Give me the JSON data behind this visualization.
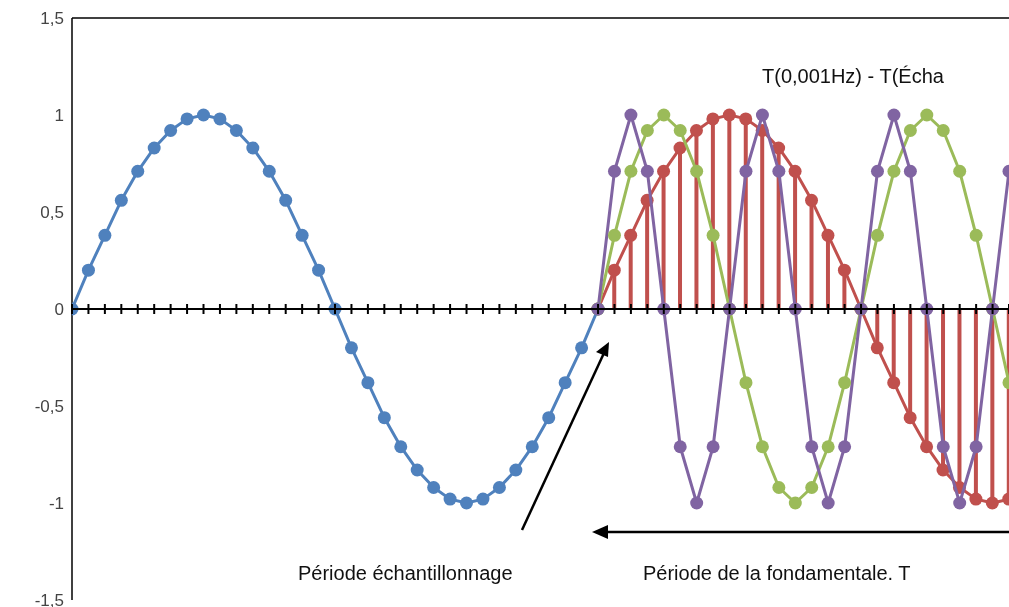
{
  "chart_data": {
    "type": "line",
    "categories": [
      null,
      null,
      null,
      null,
      null,
      null,
      null,
      null,
      null,
      null,
      null,
      null,
      null,
      null,
      null,
      null,
      null,
      null,
      null,
      null,
      null,
      null,
      null,
      null,
      null,
      null,
      null,
      null,
      null,
      null,
      null,
      null,
      null,
      null,
      null,
      null,
      null,
      null,
      null,
      null,
      null,
      null,
      null,
      null,
      null,
      null,
      null,
      null,
      null,
      null,
      null,
      null,
      null,
      null,
      null,
      null,
      null,
      null
    ],
    "series": [
      {
        "color": "#4f81bd",
        "values": [
          0,
          0.2,
          0.38,
          0.56,
          0.71,
          0.83,
          0.92,
          0.98,
          1,
          0.98,
          0.92,
          0.83,
          0.71,
          0.56,
          0.38,
          0.2,
          0,
          -0.2,
          -0.38,
          -0.56,
          -0.71,
          -0.83,
          -0.92,
          -0.98,
          -1,
          -0.98,
          -0.92,
          -0.83,
          -0.71,
          -0.56,
          -0.38,
          -0.2,
          0,
          null,
          null,
          null,
          null,
          null,
          null,
          null,
          null,
          null,
          null,
          null,
          null,
          null,
          null,
          null,
          null,
          null,
          null,
          null,
          null,
          null,
          null,
          null,
          null,
          null
        ]
      },
      {
        "type": "lollipop",
        "color": "#c0504d",
        "values": [
          null,
          null,
          null,
          null,
          null,
          null,
          null,
          null,
          null,
          null,
          null,
          null,
          null,
          null,
          null,
          null,
          null,
          null,
          null,
          null,
          null,
          null,
          null,
          null,
          null,
          null,
          null,
          null,
          null,
          null,
          null,
          null,
          0,
          0.2,
          0.38,
          0.56,
          0.71,
          0.83,
          0.92,
          0.98,
          1,
          0.98,
          0.92,
          0.83,
          0.71,
          0.56,
          0.38,
          0.2,
          0,
          -0.2,
          -0.38,
          -0.56,
          -0.71,
          -0.83,
          -0.92,
          -0.98,
          -1,
          -0.98
        ]
      },
      {
        "color": "#c0504d",
        "marker": "none",
        "values": [
          null,
          null,
          null,
          null,
          null,
          null,
          null,
          null,
          null,
          null,
          null,
          null,
          null,
          null,
          null,
          null,
          null,
          null,
          null,
          null,
          null,
          null,
          null,
          null,
          null,
          null,
          null,
          null,
          null,
          null,
          null,
          null,
          0,
          0.2,
          0.38,
          0.56,
          0.71,
          0.83,
          0.92,
          0.98,
          1,
          0.98,
          0.92,
          0.83,
          0.71,
          0.56,
          0.38,
          0.2,
          0,
          -0.2,
          -0.38,
          -0.56,
          -0.71,
          -0.83,
          -0.92,
          -0.98,
          -1,
          -0.98
        ]
      },
      {
        "color": "#9bbb59",
        "values": [
          null,
          null,
          null,
          null,
          null,
          null,
          null,
          null,
          null,
          null,
          null,
          null,
          null,
          null,
          null,
          null,
          null,
          null,
          null,
          null,
          null,
          null,
          null,
          null,
          null,
          null,
          null,
          null,
          null,
          null,
          null,
          null,
          0,
          0.38,
          0.71,
          0.92,
          1,
          0.92,
          0.71,
          0.38,
          0,
          -0.38,
          -0.71,
          -0.92,
          -1,
          -0.92,
          -0.71,
          -0.38,
          0,
          0.38,
          0.71,
          0.92,
          1,
          0.92,
          0.71,
          0.38,
          0,
          -0.38
        ]
      },
      {
        "color": "#8064a2",
        "values": [
          null,
          null,
          null,
          null,
          null,
          null,
          null,
          null,
          null,
          null,
          null,
          null,
          null,
          null,
          null,
          null,
          null,
          null,
          null,
          null,
          null,
          null,
          null,
          null,
          null,
          null,
          null,
          null,
          null,
          null,
          null,
          null,
          0,
          0.71,
          1,
          0.71,
          0,
          -0.71,
          -1,
          -0.71,
          0,
          0.71,
          1,
          0.71,
          0,
          -0.71,
          -1,
          -0.71,
          0,
          0.71,
          1,
          0.71,
          0,
          -0.71,
          -1,
          -0.71,
          0,
          0.71
        ]
      }
    ],
    "ylim": [
      -1.5,
      1.5
    ],
    "yticks": [
      {
        "value": -1.5,
        "label": "-1,5"
      },
      -1,
      {
        "value": -0.5,
        "label": "-0,5"
      },
      0,
      {
        "value": 0.5,
        "label": "0,5"
      },
      1,
      {
        "value": 1.5,
        "label": "1,5"
      }
    ],
    "tick_labels": "y",
    "marker": "circle",
    "line_style": "solid",
    "annotations": [
      "T(0,001Hz) - T(Écha",
      "Période échantillonnage",
      "Période de la fondamentale. T"
    ]
  }
}
